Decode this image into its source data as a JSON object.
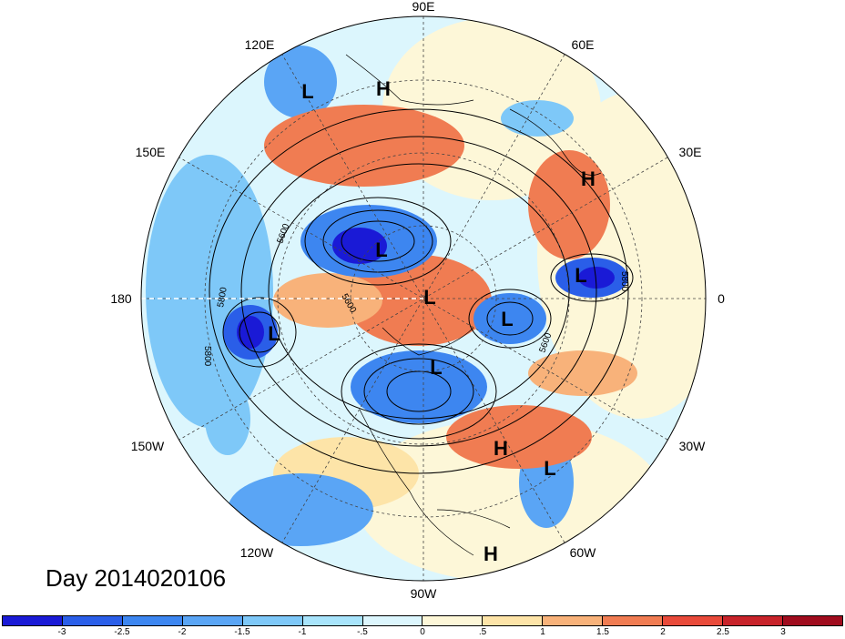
{
  "title": "Day 2014020106",
  "longitude_labels": [
    {
      "text": "90E",
      "key": "n"
    },
    {
      "text": "60E",
      "key": "nne"
    },
    {
      "text": "30E",
      "key": "ene"
    },
    {
      "text": "0",
      "key": "e"
    },
    {
      "text": "30W",
      "key": "ese"
    },
    {
      "text": "60W",
      "key": "sse"
    },
    {
      "text": "90W",
      "key": "s"
    },
    {
      "text": "120W",
      "key": "ssw"
    },
    {
      "text": "150W",
      "key": "wsw"
    },
    {
      "text": "180",
      "key": "w"
    },
    {
      "text": "150E",
      "key": "wnw"
    },
    {
      "text": "120E",
      "key": "nnw"
    }
  ],
  "pressure_systems": [
    {
      "type": "L",
      "region": "east-asia-north"
    },
    {
      "type": "H",
      "region": "east-siberia"
    },
    {
      "type": "H",
      "region": "western-russia"
    },
    {
      "type": "L",
      "region": "east-siberia-center"
    },
    {
      "type": "L",
      "region": "north-pole"
    },
    {
      "type": "L",
      "region": "scandinavia"
    },
    {
      "type": "L",
      "region": "europe-west"
    },
    {
      "type": "L",
      "region": "aleutians"
    },
    {
      "type": "L",
      "region": "hudson-bay"
    },
    {
      "type": "H",
      "region": "north-atlantic"
    },
    {
      "type": "L",
      "region": "central-atlantic"
    },
    {
      "type": "H",
      "region": "caribbean"
    }
  ],
  "contour_labels": [
    "5600",
    "5800",
    "5600",
    "5800",
    "5800",
    "5600"
  ],
  "colorbar": {
    "ticks": [
      "-3",
      "-2.5",
      "-2",
      "-1.5",
      "-1",
      "-.5",
      "0",
      ".5",
      "1",
      "1.5",
      "2",
      "2.5",
      "3"
    ],
    "colors": [
      "#1a1ad6",
      "#2a5ee8",
      "#3d86f0",
      "#5aa5f5",
      "#7ec8f8",
      "#a8e4fb",
      "#dcf6fd",
      "#fdf7d8",
      "#fde4a8",
      "#f8b27a",
      "#f07c52",
      "#e84a3a",
      "#c8232a",
      "#a00c1e"
    ]
  }
}
